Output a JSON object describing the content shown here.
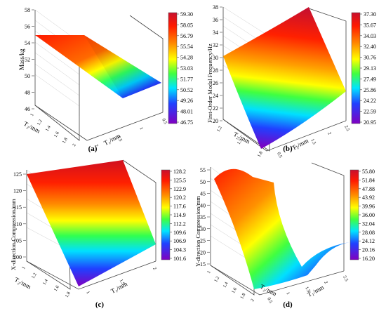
{
  "chart_data": [
    {
      "type": "surface3d",
      "panel_label": "(a)",
      "zlabel": "Mass/kg",
      "xlabel": "T₁/mm",
      "ylabel": "T₂/mm",
      "z_ticks": [
        "46",
        "48",
        "50",
        "52",
        "54",
        "56",
        "58"
      ],
      "zlim": [
        46,
        58
      ],
      "x_ticks": [
        "2",
        "1.5",
        "1",
        "0.5"
      ],
      "y_ticks": [
        "1",
        "1.2",
        "1.4",
        "1.6",
        "1.8",
        "2"
      ],
      "colorbar_ticks": [
        "59.30",
        "58.05",
        "56.79",
        "55.54",
        "54.28",
        "53.03",
        "51.77",
        "50.52",
        "49.26",
        "48.01",
        "46.75"
      ],
      "corners": {
        "back_left": 57.0,
        "front_left": 56.5,
        "back_right": 49.5,
        "front_right": 48.0
      }
    },
    {
      "type": "surface3d",
      "panel_label": "(b)",
      "zlabel": "First-Order Modal Frequency/Hz",
      "xlabel": "T₁/mm",
      "ylabel": "T₂/mm",
      "z_ticks": [
        "20",
        "22",
        "24",
        "26",
        "28",
        "30",
        "32",
        "34",
        "36",
        "38"
      ],
      "zlim": [
        20,
        38
      ],
      "x_ticks": [
        "0.5",
        "1",
        "1.5",
        "2",
        "2.5"
      ],
      "y_ticks": [
        "1.2",
        "1.5",
        "1.8"
      ],
      "colorbar_ticks": [
        "37.30",
        "35.67",
        "34.03",
        "32.40",
        "30.76",
        "29.13",
        "27.49",
        "25.86",
        "24.22",
        "22.59",
        "20.95"
      ],
      "corners": {
        "back_left": 29.5,
        "front_left": 25.0,
        "back_right": 37.3,
        "front_right": 21.0
      }
    },
    {
      "type": "surface3d",
      "panel_label": "(c)",
      "zlabel": "X-direction Compression/mm",
      "xlabel": "T₁/mm",
      "ylabel": "T₂/mm",
      "z_ticks": [
        "100",
        "105",
        "110",
        "115",
        "120",
        "125"
      ],
      "zlim": [
        100,
        128
      ],
      "x_ticks": [
        "1",
        "1.5",
        "2"
      ],
      "y_ticks": [
        "1",
        "1.2",
        "1.4",
        "1.6",
        "1.8"
      ],
      "colorbar_ticks": [
        "128.2",
        "125.5",
        "122.9",
        "120.2",
        "117.6",
        "114.9",
        "112.2",
        "109.6",
        "106.9",
        "104.3",
        "101.6"
      ],
      "corners": {
        "back_left": 128.0,
        "front_left": 126.5,
        "back_right": 103.0,
        "front_right": 101.6
      }
    },
    {
      "type": "surface3d",
      "panel_label": "(d)",
      "zlabel": "Y-direction Compression/mm",
      "xlabel": "T₁/mm",
      "ylabel": "T₂/mm",
      "z_ticks": [
        "15",
        "20",
        "25",
        "30",
        "35",
        "40",
        "45",
        "50",
        "55"
      ],
      "zlim": [
        15,
        55
      ],
      "x_ticks": [
        "0.5",
        "1",
        "1.5",
        "2",
        "2.5"
      ],
      "y_ticks": [
        "1",
        "1.2",
        "1.4",
        "1.6",
        "1.8",
        "2"
      ],
      "colorbar_ticks": [
        "55.80",
        "51.84",
        "47.88",
        "43.92",
        "39.96",
        "36.00",
        "32.04",
        "28.08",
        "24.12",
        "20.16",
        "16.20"
      ],
      "corners": {
        "back_left": 49.0,
        "front_left": 30.0,
        "back_right": 27.0,
        "front_right": 20.0
      }
    }
  ]
}
